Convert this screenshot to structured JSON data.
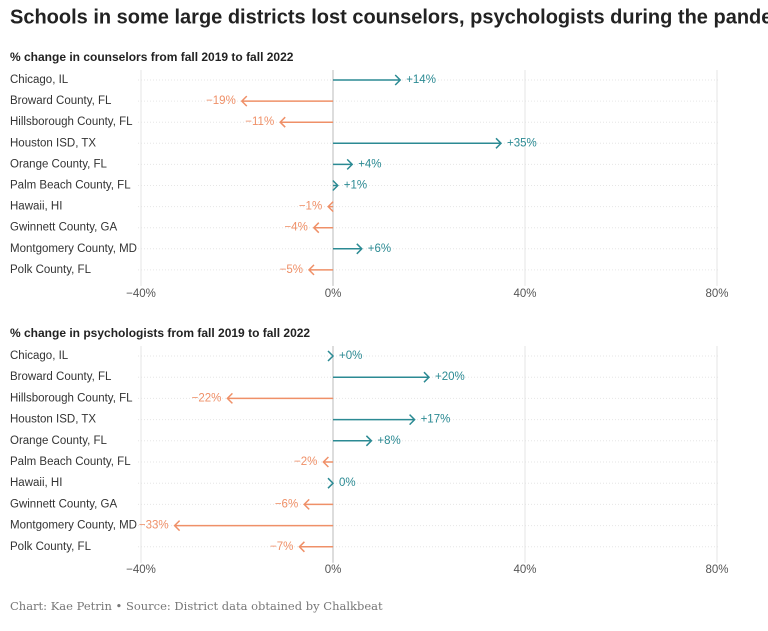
{
  "title": "Schools in some large districts lost counselors, psychologists during the pandemic",
  "chart_data": [
    {
      "type": "arrow",
      "title": "% change in counselors from fall 2019 to fall 2022",
      "categories": [
        "Chicago, IL",
        "Broward County, FL",
        "Hillsborough County, FL",
        "Houston ISD, TX",
        "Orange County, FL",
        "Palm Beach County, FL",
        "Hawaii, HI",
        "Gwinnett County, GA",
        "Montgomery County, MD",
        "Polk County, FL"
      ],
      "values": [
        14,
        -19,
        -11,
        35,
        4,
        1,
        -1,
        -4,
        6,
        -5
      ],
      "value_labels": [
        "+14%",
        "−19%",
        "−11%",
        "+35%",
        "+4%",
        "+1%",
        "−1%",
        "−4%",
        "+6%",
        "−5%"
      ],
      "positive_color": "#2b8a93",
      "negative_color": "#ef9068",
      "xlim": [
        -40,
        80
      ],
      "xticks": [
        {
          "value": -40,
          "label": "−40%"
        },
        {
          "value": 0,
          "label": "0%"
        },
        {
          "value": 40,
          "label": "40%"
        },
        {
          "value": 80,
          "label": "80%"
        }
      ],
      "grid": true
    },
    {
      "type": "arrow",
      "title": "% change in psychologists from fall 2019 to fall 2022",
      "categories": [
        "Chicago, IL",
        "Broward County, FL",
        "Hillsborough County, FL",
        "Houston ISD, TX",
        "Orange County, FL",
        "Palm Beach County, FL",
        "Hawaii, HI",
        "Gwinnett County, GA",
        "Montgomery County, MD",
        "Polk County, FL"
      ],
      "values": [
        0,
        20,
        -22,
        17,
        8,
        -2,
        0,
        -6,
        -33,
        -7
      ],
      "value_labels": [
        "+0%",
        "+20%",
        "−22%",
        "+17%",
        "+8%",
        "−2%",
        "0%",
        "−6%",
        "−33%",
        "−7%"
      ],
      "positive_color": "#2b8a93",
      "negative_color": "#ef9068",
      "xlim": [
        -40,
        80
      ],
      "xticks": [
        {
          "value": -40,
          "label": "−40%"
        },
        {
          "value": 0,
          "label": "0%"
        },
        {
          "value": 40,
          "label": "40%"
        },
        {
          "value": 80,
          "label": "80%"
        }
      ],
      "grid": true
    }
  ],
  "source": "Chart: Kae Petrin • Source: District data obtained by Chalkbeat"
}
